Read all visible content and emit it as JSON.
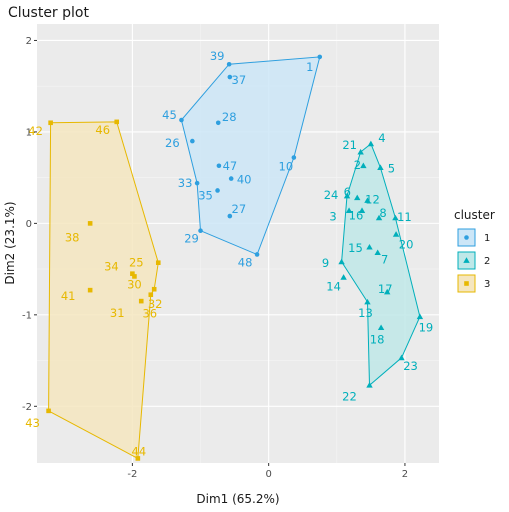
{
  "chart_data": {
    "type": "scatter",
    "title": "Cluster plot",
    "xlabel": "Dim1 (65.2%)",
    "ylabel": "Dim2 (23.1%)",
    "xlim": [
      -3.4,
      2.5
    ],
    "ylim": [
      -2.62,
      2.18
    ],
    "x_ticks": [
      -2,
      0,
      2
    ],
    "y_ticks": [
      -2,
      -1,
      0,
      1,
      2
    ],
    "grid": true,
    "background": "#ebebeb",
    "legend": {
      "title": "cluster",
      "position": "right",
      "entries": [
        "1",
        "2",
        "3"
      ]
    },
    "series": [
      {
        "name": "1",
        "color": "#2e9fdf",
        "fill": "#cce6f7",
        "marker": "circle",
        "hull": [
          "1",
          "10",
          "48",
          "29",
          "33",
          "45",
          "39"
        ],
        "points": [
          {
            "label": "1",
            "x": 0.75,
            "y": 1.82
          },
          {
            "label": "39",
            "x": -0.58,
            "y": 1.74
          },
          {
            "label": "37",
            "x": -0.57,
            "y": 1.6
          },
          {
            "label": "45",
            "x": -1.28,
            "y": 1.13
          },
          {
            "label": "28",
            "x": -0.74,
            "y": 1.1
          },
          {
            "label": "26",
            "x": -1.12,
            "y": 0.9
          },
          {
            "label": "47",
            "x": -0.73,
            "y": 0.63
          },
          {
            "label": "10",
            "x": 0.37,
            "y": 0.72
          },
          {
            "label": "33",
            "x": -1.05,
            "y": 0.44
          },
          {
            "label": "40",
            "x": -0.55,
            "y": 0.49
          },
          {
            "label": "35",
            "x": -0.75,
            "y": 0.36
          },
          {
            "label": "27",
            "x": -0.57,
            "y": 0.08
          },
          {
            "label": "29",
            "x": -1.0,
            "y": -0.08
          },
          {
            "label": "48",
            "x": -0.17,
            "y": -0.34
          }
        ]
      },
      {
        "name": "2",
        "color": "#00afbb",
        "fill": "#bfe8e8",
        "marker": "triangle",
        "hull": [
          "4",
          "5",
          "11",
          "19",
          "23",
          "22",
          "13",
          "9",
          "24",
          "21"
        ],
        "points": [
          {
            "label": "21",
            "x": 1.35,
            "y": 0.78
          },
          {
            "label": "4",
            "x": 1.5,
            "y": 0.87
          },
          {
            "label": "2",
            "x": 1.39,
            "y": 0.63
          },
          {
            "label": "5",
            "x": 1.64,
            "y": 0.61
          },
          {
            "label": "24",
            "x": 1.15,
            "y": 0.3
          },
          {
            "label": "6",
            "x": 1.3,
            "y": 0.28
          },
          {
            "label": "12",
            "x": 1.45,
            "y": 0.25
          },
          {
            "label": "3",
            "x": 1.18,
            "y": 0.14
          },
          {
            "label": "16",
            "x": 1.37,
            "y": 0.14
          },
          {
            "label": "8",
            "x": 1.62,
            "y": 0.06
          },
          {
            "label": "11",
            "x": 1.86,
            "y": 0.06
          },
          {
            "label": "15",
            "x": 1.48,
            "y": -0.26
          },
          {
            "label": "20",
            "x": 1.87,
            "y": -0.12
          },
          {
            "label": "7",
            "x": 1.6,
            "y": -0.32
          },
          {
            "label": "9",
            "x": 1.07,
            "y": -0.42
          },
          {
            "label": "14",
            "x": 1.1,
            "y": -0.59
          },
          {
            "label": "17",
            "x": 1.74,
            "y": -0.75
          },
          {
            "label": "13",
            "x": 1.45,
            "y": -0.86
          },
          {
            "label": "19",
            "x": 2.22,
            "y": -1.02
          },
          {
            "label": "18",
            "x": 1.65,
            "y": -1.14
          },
          {
            "label": "23",
            "x": 1.95,
            "y": -1.47
          },
          {
            "label": "22",
            "x": 1.48,
            "y": -1.77
          }
        ]
      },
      {
        "name": "3",
        "color": "#e7b800",
        "fill": "#f5e6bf",
        "marker": "square",
        "hull": [
          "46",
          "25",
          "32",
          "36",
          "44",
          "43",
          "42"
        ],
        "points": [
          {
            "label": "42",
            "x": -3.2,
            "y": 1.1
          },
          {
            "label": "46",
            "x": -2.23,
            "y": 1.11
          },
          {
            "label": "38",
            "x": -2.62,
            "y": 0.0
          },
          {
            "label": "25",
            "x": -1.62,
            "y": -0.43
          },
          {
            "label": "34",
            "x": -2.0,
            "y": -0.55
          },
          {
            "label": "30",
            "x": -1.97,
            "y": -0.58
          },
          {
            "label": "32",
            "x": -1.68,
            "y": -0.72
          },
          {
            "label": "41",
            "x": -2.62,
            "y": -0.73
          },
          {
            "label": "36",
            "x": -1.73,
            "y": -0.78
          },
          {
            "label": "31",
            "x": -1.87,
            "y": -0.85
          },
          {
            "label": "43",
            "x": -3.23,
            "y": -2.05
          },
          {
            "label": "44",
            "x": -1.92,
            "y": -2.57
          }
        ]
      }
    ]
  }
}
